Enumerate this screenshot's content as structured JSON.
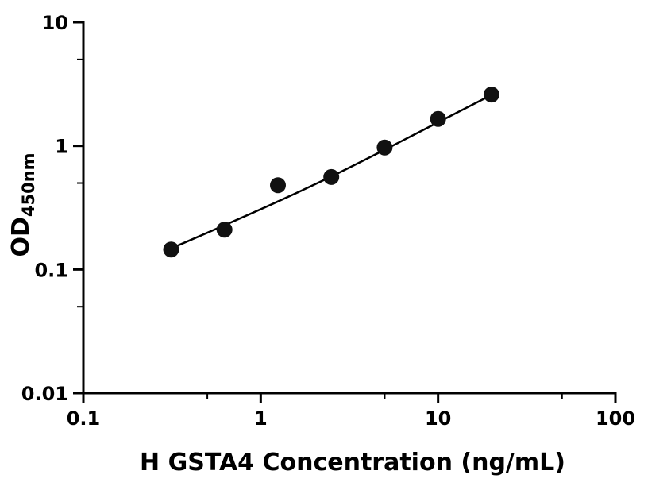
{
  "chart": {
    "background": "#ffffff",
    "axis_color": "#000000",
    "point_color": "#111111",
    "line_color": "#000000"
  },
  "chart_data": {
    "type": "scatter",
    "title": "",
    "x_scale": "log",
    "y_scale": "log",
    "xlabel": "H GSTA4 Concentration (ng/mL)",
    "ylabel": "OD",
    "ylabel_subscript": "450nm",
    "xlim": [
      0.1,
      100
    ],
    "ylim": [
      0.01,
      10
    ],
    "x_ticks": [
      0.1,
      1,
      10,
      100
    ],
    "x_tick_labels": [
      "0.1",
      "1",
      "10",
      "100"
    ],
    "x_minor_ticks": [
      0.5,
      5,
      50
    ],
    "y_ticks": [
      0.01,
      0.1,
      1,
      10
    ],
    "y_tick_labels": [
      "0.01",
      "0.1",
      "1",
      "10"
    ],
    "y_minor_ticks": [
      0.05,
      0.5,
      5
    ],
    "grid": "off",
    "legend": "none",
    "points": {
      "x": [
        0.3125,
        0.625,
        1.25,
        2.5,
        5,
        10,
        20
      ],
      "y": [
        0.145,
        0.21,
        0.48,
        0.56,
        0.97,
        1.65,
        2.6
      ]
    },
    "trend_line": {
      "x": [
        0.3125,
        0.625,
        1.25,
        2.5,
        5,
        10,
        20
      ],
      "y": [
        0.148,
        0.228,
        0.355,
        0.565,
        0.93,
        1.55,
        2.58
      ]
    }
  }
}
